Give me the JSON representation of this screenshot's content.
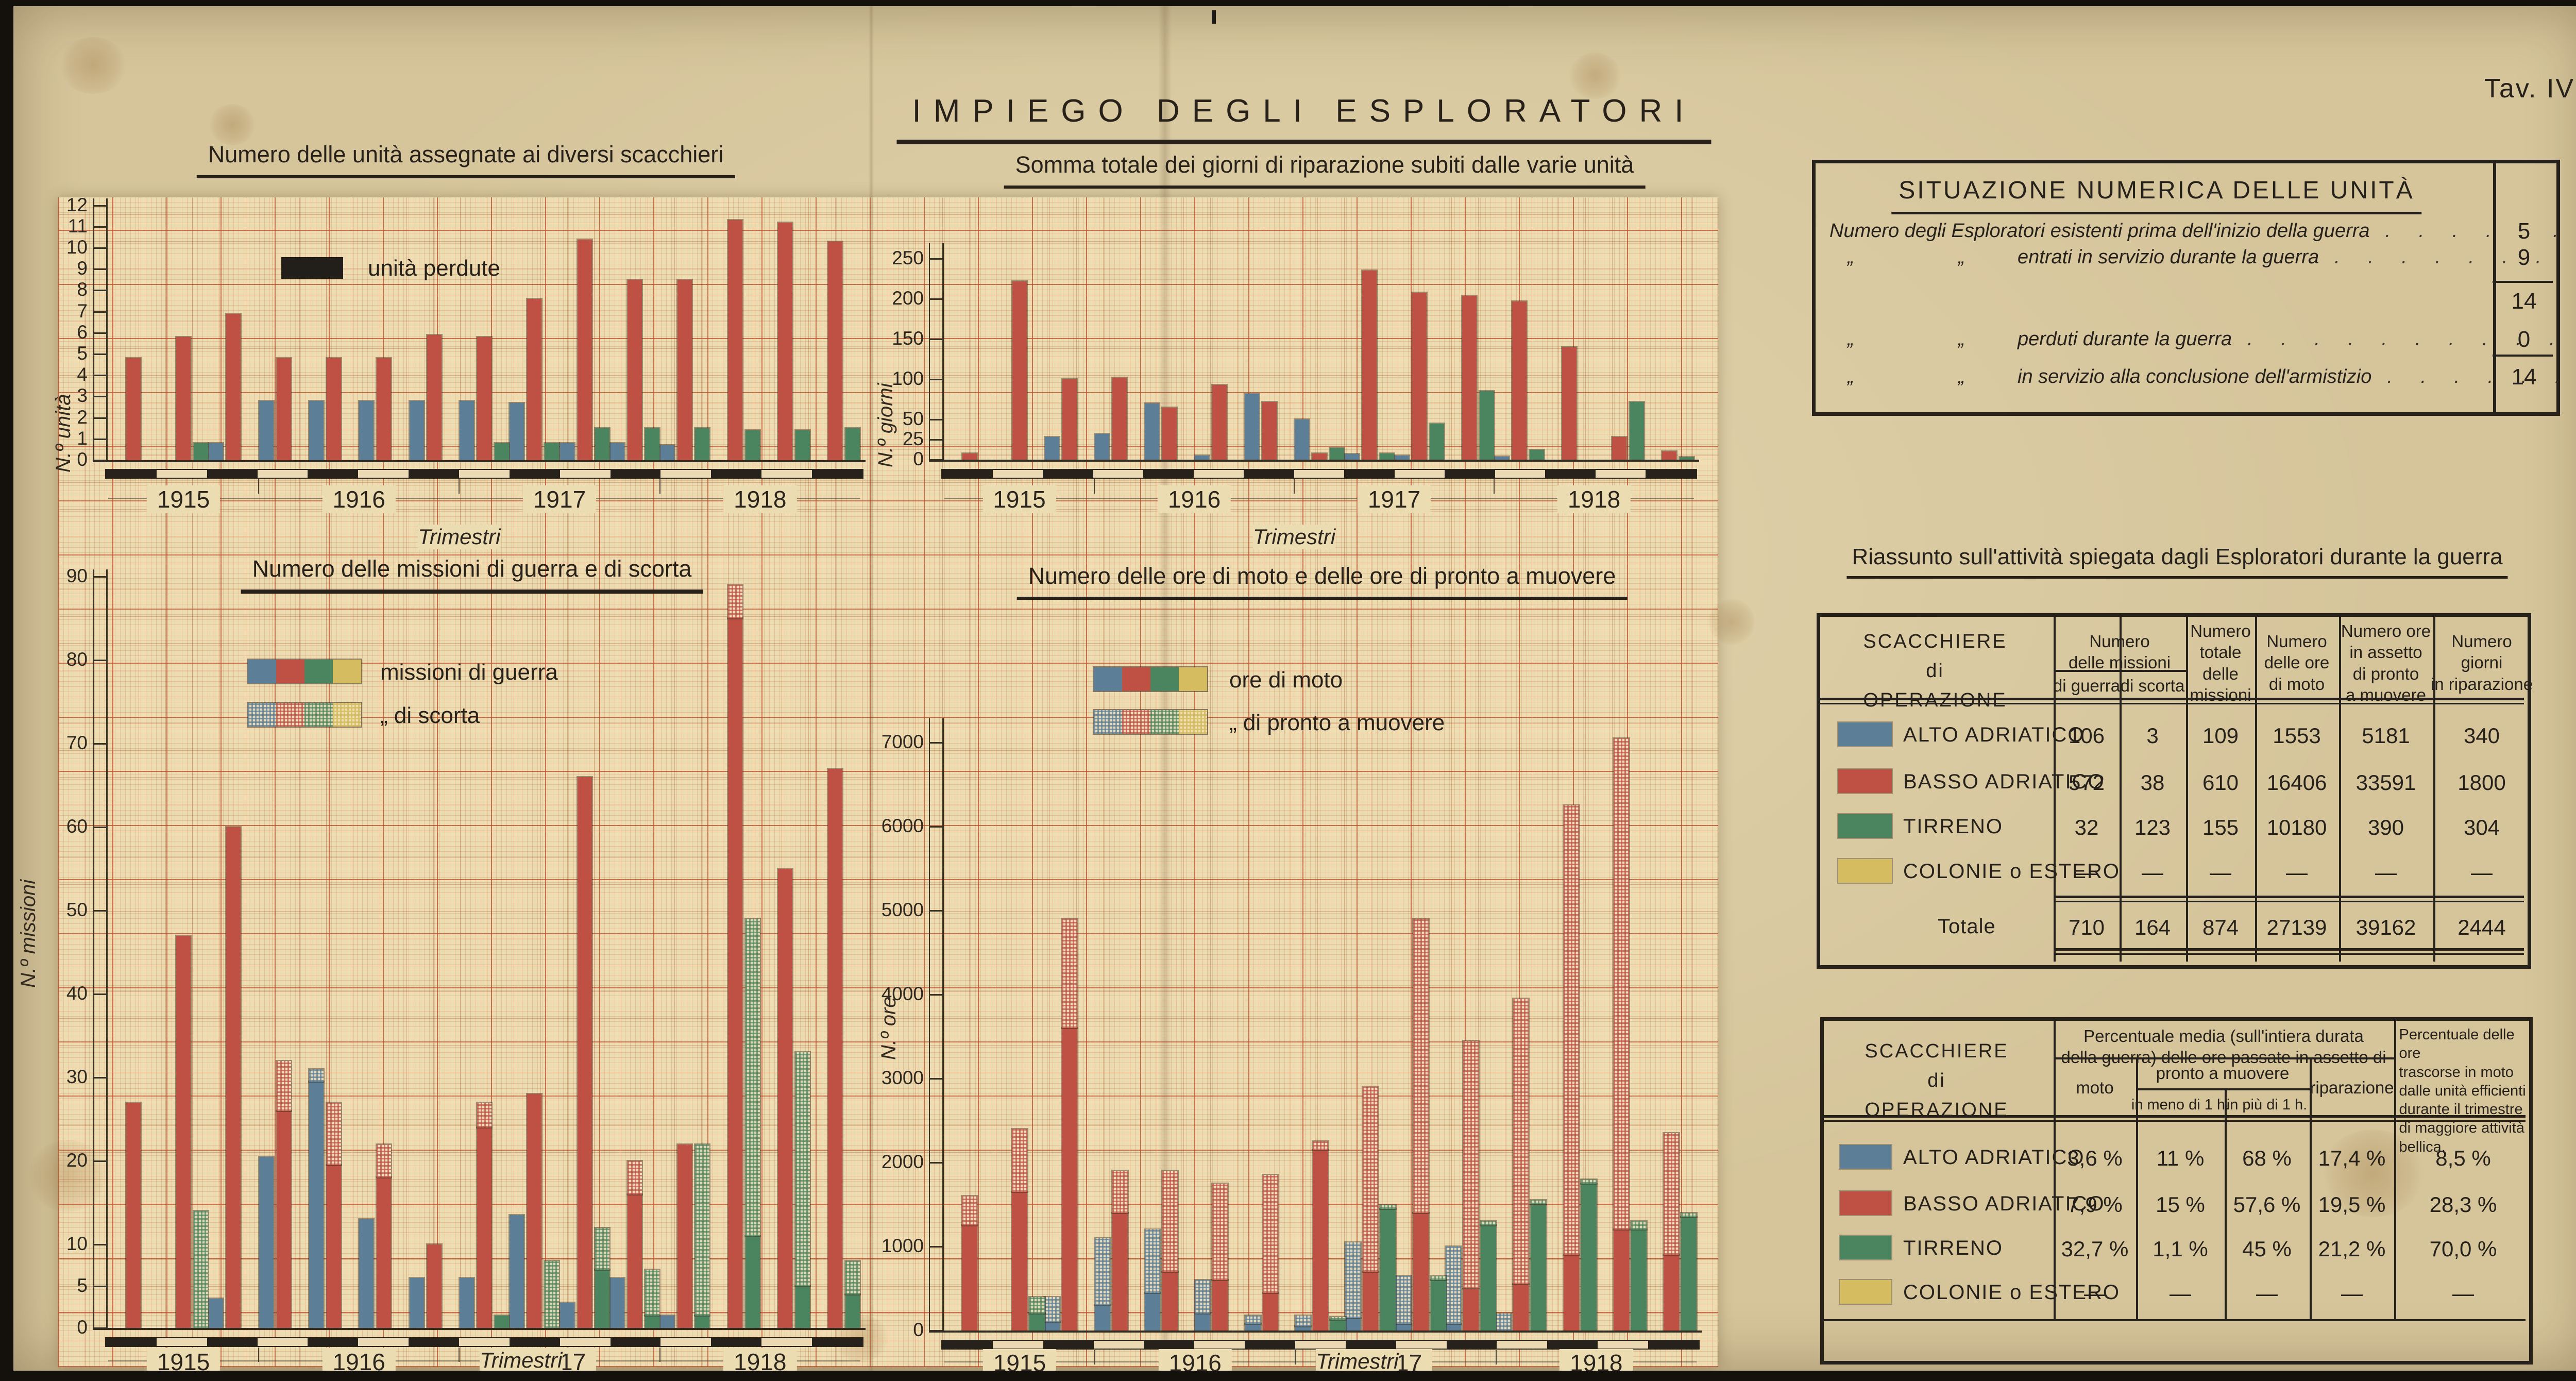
{
  "page": {
    "tav": "Tav. IV",
    "title": "IMPIEGO DEGLI ESPLORATORI"
  },
  "colors": {
    "blue": "#5c7e97",
    "red": "#bf5044",
    "green": "#4b8560",
    "yellow": "#d6bc60",
    "black": "#221f1a"
  },
  "timeline": {
    "label": "Trimestri",
    "years": [
      "1915",
      "1916",
      "1917",
      "1918"
    ],
    "year_quarters": [
      3,
      4,
      4,
      4
    ]
  },
  "chart_data": [
    {
      "id": "units",
      "type": "bar",
      "title": "Numero delle unità assegnate ai diversi scacchieri",
      "ylabel": "N.º unità",
      "xlabel": "Trimestri",
      "ylim": [
        0,
        12
      ],
      "yticks": [
        0,
        1,
        2,
        3,
        4,
        5,
        6,
        7,
        8,
        9,
        10,
        11,
        12
      ],
      "legend": {
        "lost": "unità perdute"
      },
      "quarters": [
        "1915-II",
        "1915-III",
        "1915-IV",
        "1916-I",
        "1916-II",
        "1916-III",
        "1916-IV",
        "1917-I",
        "1917-II",
        "1917-III",
        "1917-IV",
        "1918-I",
        "1918-II",
        "1918-III",
        "1918-IV"
      ],
      "series": [
        {
          "name": "Alto Adriatico",
          "color": "blue",
          "values": [
            0,
            0,
            0.8,
            2.8,
            2.8,
            2.8,
            2.8,
            2.8,
            2.7,
            0.8,
            0.8,
            0.7,
            0,
            0,
            0
          ]
        },
        {
          "name": "Basso Adriatico",
          "color": "red",
          "values": [
            4.8,
            5.8,
            6.9,
            4.8,
            4.8,
            4.8,
            5.9,
            5.8,
            7.6,
            10.4,
            8.5,
            8.5,
            11.3,
            11.2,
            10.3
          ]
        },
        {
          "name": "Tirreno",
          "color": "green",
          "values": [
            0,
            0.8,
            0,
            0,
            0,
            0,
            0,
            0.8,
            0.8,
            1.5,
            1.5,
            1.5,
            1.4,
            1.4,
            1.5
          ]
        },
        {
          "name": "Unità perdute",
          "color": "black",
          "values": [
            0,
            0,
            0,
            0,
            0,
            0,
            0,
            0,
            0,
            0,
            0,
            0,
            0,
            0,
            0
          ]
        }
      ]
    },
    {
      "id": "repairs",
      "type": "bar",
      "title": "Somma totale dei giorni di riparazione subiti dalle varie unità",
      "ylabel": "N.º giorni",
      "xlabel": "Trimestri",
      "ylim": [
        0,
        260
      ],
      "yticks": [
        0,
        25,
        50,
        100,
        150,
        200,
        250
      ],
      "quarters": [
        "1915-II",
        "1915-III",
        "1915-IV",
        "1916-I",
        "1916-II",
        "1916-III",
        "1916-IV",
        "1917-I",
        "1917-II",
        "1917-III",
        "1917-IV",
        "1918-I",
        "1918-II",
        "1918-III",
        "1918-IV"
      ],
      "series": [
        {
          "name": "Alto Adriatico",
          "color": "blue",
          "values": [
            0,
            0,
            28,
            32,
            70,
            5,
            82,
            50,
            7,
            5,
            0,
            4,
            0,
            0,
            0
          ]
        },
        {
          "name": "Basso Adriatico",
          "color": "red",
          "values": [
            8,
            222,
            100,
            102,
            65,
            93,
            72,
            8,
            235,
            208,
            204,
            197,
            140,
            28,
            10
          ]
        },
        {
          "name": "Tirreno",
          "color": "green",
          "values": [
            0,
            0,
            0,
            0,
            0,
            0,
            0,
            15,
            8,
            45,
            85,
            12,
            0,
            72,
            3
          ]
        }
      ]
    },
    {
      "id": "missions",
      "type": "stacked-bar",
      "title": "Numero delle missioni di guerra e di scorta",
      "ylabel": "N.º missioni",
      "xlabel": "Trimestri",
      "ylim": [
        0,
        90
      ],
      "yticks": [
        0,
        5,
        10,
        20,
        30,
        40,
        50,
        60,
        70,
        80,
        90
      ],
      "legend": {
        "guerra": "missioni di guerra",
        "scorta": "„      di scorta"
      },
      "solid_key": "guerra",
      "hatched_key": "scorta",
      "quarters": [
        "1915-II",
        "1915-III",
        "1915-IV",
        "1916-I",
        "1916-II",
        "1916-III",
        "1916-IV",
        "1917-I",
        "1917-II",
        "1917-III",
        "1917-IV",
        "1918-I",
        "1918-II",
        "1918-III",
        "1918-IV"
      ],
      "series": [
        {
          "name": "Alto Adriatico",
          "color": "blue",
          "guerra": [
            0,
            0,
            3.5,
            20.5,
            29.5,
            13,
            6,
            6,
            13.5,
            3,
            6,
            1.5,
            0,
            0,
            0
          ],
          "scorta": [
            0,
            0,
            0,
            0,
            1.5,
            0,
            0,
            0,
            0,
            0,
            0,
            0,
            0,
            0,
            0
          ]
        },
        {
          "name": "Basso Adriatico",
          "color": "red",
          "guerra": [
            27,
            47,
            60,
            26,
            19.5,
            18,
            10,
            24,
            28,
            66,
            16,
            22,
            85,
            55,
            67
          ],
          "scorta": [
            0,
            0,
            0,
            6,
            7.5,
            4,
            0,
            3,
            0,
            0,
            4,
            0,
            4,
            0,
            0
          ]
        },
        {
          "name": "Tirreno",
          "color": "green",
          "guerra": [
            0,
            0,
            0,
            0,
            0,
            0,
            0,
            1.5,
            0,
            7,
            1.5,
            1.5,
            11,
            5,
            4
          ],
          "scorta": [
            0,
            14,
            0,
            0,
            0,
            0,
            0,
            0,
            8,
            5,
            5.5,
            20.5,
            38,
            28,
            4
          ]
        }
      ]
    },
    {
      "id": "hours",
      "type": "stacked-bar",
      "title": "Numero delle ore di moto e delle ore di pronto a muovere",
      "ylabel": "N.º ore",
      "xlabel": "Trimestri",
      "ylim": [
        0,
        7200
      ],
      "yticks": [
        0,
        1000,
        2000,
        3000,
        4000,
        5000,
        6000,
        7000
      ],
      "legend": {
        "moto": "ore di moto",
        "pronto": "„   di pronto a muovere"
      },
      "solid_key": "moto",
      "hatched_key": "pronto",
      "quarters": [
        "1915-II",
        "1915-III",
        "1915-IV",
        "1916-I",
        "1916-II",
        "1916-III",
        "1916-IV",
        "1917-I",
        "1917-II",
        "1917-III",
        "1917-IV",
        "1918-I",
        "1918-II",
        "1918-III",
        "1918-IV"
      ],
      "series": [
        {
          "name": "Alto Adriatico",
          "color": "blue",
          "moto": [
            0,
            0,
            100,
            300,
            450,
            200,
            80,
            50,
            150,
            80,
            80,
            0,
            0,
            0,
            0
          ],
          "pronto": [
            0,
            0,
            300,
            800,
            750,
            400,
            100,
            130,
            900,
            570,
            920,
            200,
            0,
            0,
            0
          ]
        },
        {
          "name": "Basso Adriatico",
          "color": "red",
          "moto": [
            1250,
            1650,
            3600,
            1400,
            700,
            600,
            450,
            2150,
            700,
            1400,
            500,
            550,
            900,
            1200,
            900
          ],
          "pronto": [
            350,
            750,
            1300,
            500,
            1200,
            1150,
            1400,
            100,
            2200,
            3500,
            2950,
            3400,
            5350,
            5850,
            1450
          ]
        },
        {
          "name": "Tirreno",
          "color": "green",
          "moto": [
            0,
            200,
            0,
            0,
            0,
            0,
            0,
            130,
            1450,
            600,
            1250,
            1500,
            1750,
            1200,
            1350
          ],
          "pronto": [
            0,
            200,
            0,
            0,
            0,
            0,
            0,
            30,
            50,
            50,
            50,
            50,
            50,
            100,
            50
          ]
        }
      ]
    }
  ],
  "tables": {
    "situazione": {
      "title": "SITUAZIONE NUMERICA DELLE UNITÀ",
      "rows": [
        {
          "prefix": "",
          "label": "Numero degli Esploratori esistenti prima dell'inizio della guerra",
          "leader": ". . . . . . .",
          "value": "5"
        },
        {
          "prefix": "„",
          "prefix2": "„",
          "label": "entrati in servizio durante la guerra",
          "leader": ". . . . . . .",
          "value": "9"
        },
        {
          "prefix": "",
          "label": "",
          "leader": "",
          "value": "14"
        },
        {
          "prefix": "„",
          "prefix2": "„",
          "label": "perduti durante la guerra",
          "leader": ". . . . . . . . . .",
          "value": "0"
        },
        {
          "prefix": "„",
          "prefix2": "„",
          "label": "in servizio alla conclusione dell'armistizio",
          "leader": ". . . . . .",
          "value": "14"
        }
      ]
    },
    "riassunto": {
      "title": "Riassunto sull'attività spiegata dagli Esploratori durante la guerra",
      "headers": {
        "scacchiere": "SCACCHIERE\ndi\nOPERAZIONE",
        "missioni": "Numero\ndelle missioni",
        "guerra": "di guerra",
        "scorta": "di scorta",
        "totale": "Numero\ntotale\ndelle\nmissioni",
        "moto": "Numero\ndelle ore\ndi moto",
        "pronto": "Numero ore\nin assetto\ndi pronto\na muovere",
        "giorni": "Numero\ngiorni\nin riparazione"
      },
      "rows": [
        {
          "color": "blue",
          "label": "ALTO ADRIATICO",
          "values": [
            "106",
            "3",
            "109",
            "1553",
            "5181",
            "340"
          ]
        },
        {
          "color": "red",
          "label": "BASSO ADRIATICO",
          "values": [
            "572",
            "38",
            "610",
            "16406",
            "33591",
            "1800"
          ]
        },
        {
          "color": "green",
          "label": "TIRRENO",
          "values": [
            "32",
            "123",
            "155",
            "10180",
            "390",
            "304"
          ]
        },
        {
          "color": "yellow",
          "label": "COLONIE o ESTERO",
          "values": [
            "—",
            "—",
            "—",
            "—",
            "—",
            "—"
          ]
        }
      ],
      "total": {
        "label": "Totale",
        "values": [
          "710",
          "164",
          "874",
          "27139",
          "39162",
          "2444"
        ]
      }
    },
    "percentuali": {
      "headers": {
        "scacchiere": "SCACCHIERE\ndi\nOPERAZIONE",
        "span": "Percentuale media (sull'intiera durata\ndella guerra) delle ore passate in assetto di",
        "moto": "moto",
        "pronto": "pronto a muovere",
        "meno": "in meno di 1 h.",
        "piu": "in più di 1 h.",
        "riparazione": "riparazione",
        "last": "Percentuale delle ore\ntrascorse in moto\ndalle unità efficienti\ndurante il trimestre\ndi maggiore attività\nbellica."
      },
      "rows": [
        {
          "color": "blue",
          "label": "ALTO ADRIATICO",
          "values": [
            "3,6 %",
            "11 %",
            "68 %",
            "17,4 %",
            "8,5 %"
          ]
        },
        {
          "color": "red",
          "label": "BASSO ADRIATICO",
          "values": [
            "7,9 %",
            "15 %",
            "57,6 %",
            "19,5 %",
            "28,3 %"
          ]
        },
        {
          "color": "green",
          "label": "TIRRENO",
          "values": [
            "32,7 %",
            "1,1 %",
            "45 %",
            "21,2 %",
            "70,0 %"
          ]
        },
        {
          "color": "yellow",
          "label": "COLONIE o ESTERO",
          "values": [
            "—",
            "—",
            "—",
            "—",
            "—"
          ]
        }
      ]
    }
  }
}
